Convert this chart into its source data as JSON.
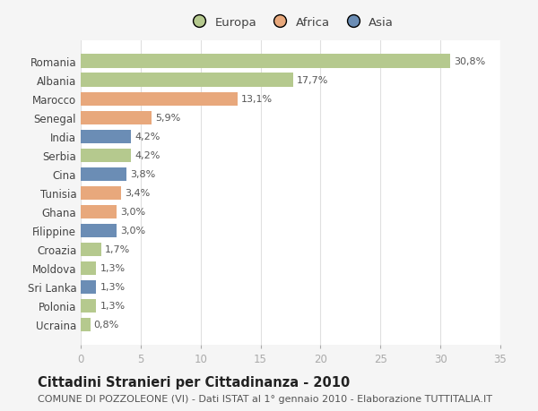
{
  "categories": [
    "Romania",
    "Albania",
    "Marocco",
    "Senegal",
    "India",
    "Serbia",
    "Cina",
    "Tunisia",
    "Ghana",
    "Filippine",
    "Croazia",
    "Moldova",
    "Sri Lanka",
    "Polonia",
    "Ucraina"
  ],
  "values": [
    30.8,
    17.7,
    13.1,
    5.9,
    4.2,
    4.2,
    3.8,
    3.4,
    3.0,
    3.0,
    1.7,
    1.3,
    1.3,
    1.3,
    0.8
  ],
  "colors": [
    "#b5c98e",
    "#b5c98e",
    "#e8a87c",
    "#e8a87c",
    "#6b8db5",
    "#b5c98e",
    "#6b8db5",
    "#e8a87c",
    "#e8a87c",
    "#6b8db5",
    "#b5c98e",
    "#b5c98e",
    "#6b8db5",
    "#b5c98e",
    "#b5c98e"
  ],
  "labels": [
    "30,8%",
    "17,7%",
    "13,1%",
    "5,9%",
    "4,2%",
    "4,2%",
    "3,8%",
    "3,4%",
    "3,0%",
    "3,0%",
    "1,7%",
    "1,3%",
    "1,3%",
    "1,3%",
    "0,8%"
  ],
  "legend": [
    {
      "label": "Europa",
      "color": "#b5c98e"
    },
    {
      "label": "Africa",
      "color": "#e8a87c"
    },
    {
      "label": "Asia",
      "color": "#6b8db5"
    }
  ],
  "title": "Cittadini Stranieri per Cittadinanza - 2010",
  "subtitle": "COMUNE DI POZZOLEONE (VI) - Dati ISTAT al 1° gennaio 2010 - Elaborazione TUTTITALIA.IT",
  "xlim": [
    0,
    35
  ],
  "xticks": [
    0,
    5,
    10,
    15,
    20,
    25,
    30,
    35
  ],
  "background_color": "#f5f5f5",
  "plot_background": "#ffffff",
  "grid_color": "#e0e0e0",
  "bar_height": 0.72,
  "title_fontsize": 10.5,
  "subtitle_fontsize": 8.0,
  "label_fontsize": 8.0,
  "tick_fontsize": 8.5,
  "legend_fontsize": 9.5
}
